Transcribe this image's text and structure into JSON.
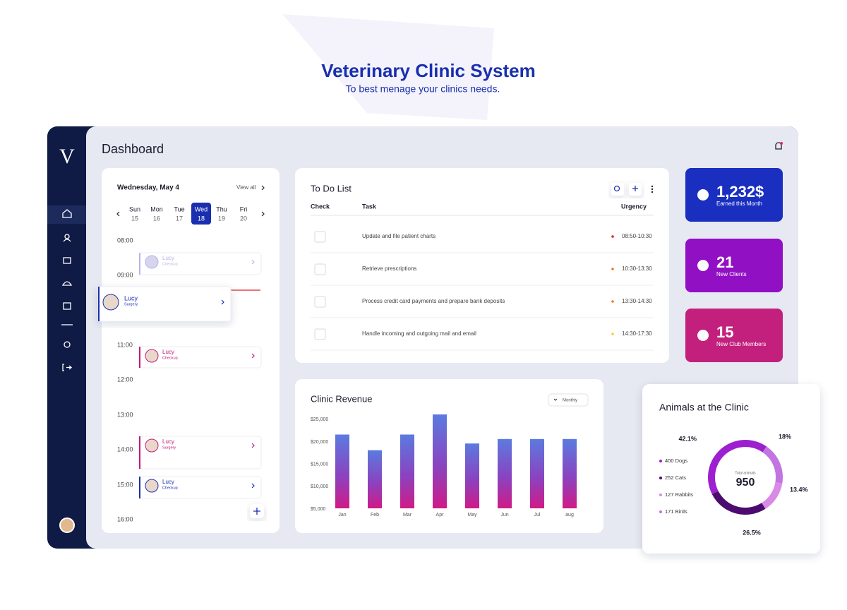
{
  "header": {
    "title": "Veterinary Clinic System",
    "subtitle": "To best menage your clinics needs."
  },
  "sidebar": {
    "logo": "V"
  },
  "dashboard": {
    "title": "Dashboard"
  },
  "schedule": {
    "date": "Wednesday, May 4",
    "view_all": "View all",
    "days": [
      {
        "name": "Sun",
        "num": 15
      },
      {
        "name": "Mon",
        "num": 16
      },
      {
        "name": "Tue",
        "num": 17
      },
      {
        "name": "Wed",
        "num": 18
      },
      {
        "name": "Thu",
        "num": 19
      },
      {
        "name": "Fri",
        "num": 20
      }
    ],
    "times": [
      "08:00",
      "09:00",
      "11:00",
      "12:00",
      "13:00",
      "14:00",
      "15:00",
      "16:00"
    ],
    "appointments": [
      {
        "name": "Lucy",
        "type": "Checkup"
      },
      {
        "name": "Lucy",
        "type": "Surgery"
      },
      {
        "name": "Lucy",
        "type": "Checkup"
      },
      {
        "name": "Lucy",
        "type": "Surgery"
      },
      {
        "name": "Lucy",
        "type": "Checkup"
      }
    ]
  },
  "todo": {
    "title": "To Do List",
    "columns": [
      "Check",
      "Task",
      "Urgency"
    ],
    "rows": [
      {
        "task": "Update and file patient charts",
        "time": "08:50-10:30"
      },
      {
        "task": "Retrieve prescriptions",
        "time": "10:30-13:30"
      },
      {
        "task": "Process credit card payments and prepare bank deposits",
        "time": "13:30-14:30"
      },
      {
        "task": "Handle incoming and outgoing mail and email",
        "time": "14:30-17:30"
      }
    ]
  },
  "stats": [
    {
      "value": "1,232$",
      "label": "Earned this Month"
    },
    {
      "value": "21",
      "label": "New Clients"
    },
    {
      "value": "15",
      "label": "New Club Members"
    }
  ],
  "revenue": {
    "type": "bar",
    "title": "Clinic Revenue",
    "filter": "Monthly",
    "categories": [
      "Jan",
      "Feb",
      "Mar",
      "Apr",
      "May",
      "Jun",
      "Jul",
      "aug"
    ],
    "values": [
      21500,
      18000,
      21500,
      26000,
      19500,
      20500,
      20500,
      20500
    ],
    "ylim": [
      5000,
      26000
    ],
    "yticks": [
      {
        "value": 5000,
        "label": "$5,000"
      },
      {
        "value": 10000,
        "label": "$10,000"
      },
      {
        "value": 15000,
        "label": "$15,000"
      },
      {
        "value": 20000,
        "label": "$20,000"
      },
      {
        "value": 25000,
        "label": "$25,000"
      }
    ]
  },
  "animals": {
    "type": "donut",
    "title": "Animals at the Clinic",
    "legend": [
      "400 Dogs",
      "252 Cats",
      "127 Rabbits",
      "171 Birds"
    ],
    "center_label": "Total animals",
    "total": 950,
    "values": [
      42.1,
      26.5,
      13.4,
      18
    ],
    "value_labels": [
      "42.1%",
      "26.5%",
      "13.4%",
      "18%"
    ],
    "colors": [
      "#9d1fd0",
      "#4c0b6e",
      "#d98ae6",
      "#c274e0"
    ]
  }
}
